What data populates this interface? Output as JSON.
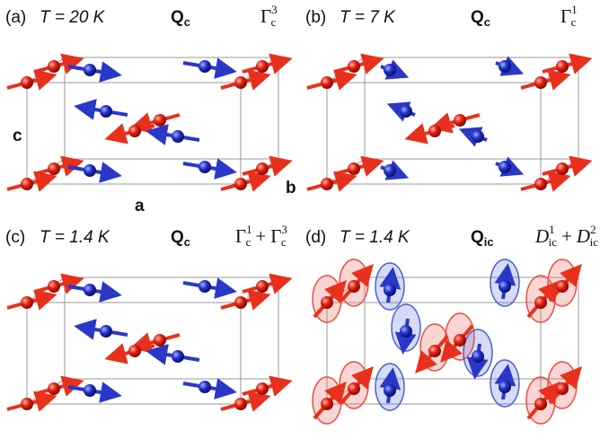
{
  "panels": [
    {
      "label": "(a)",
      "temperature": "T = 20 K",
      "wavevector": {
        "symbol": "Q",
        "subscript": "c"
      },
      "irreps": [
        {
          "symbol": "Γ",
          "subscript": "c",
          "superscript": "3"
        }
      ],
      "axes": {
        "c": "c",
        "a": "a",
        "b": "b"
      }
    },
    {
      "label": "(b)",
      "temperature": "T = 7 K",
      "wavevector": {
        "symbol": "Q",
        "subscript": "c"
      },
      "irreps": [
        {
          "symbol": "Γ",
          "subscript": "c",
          "superscript": "1"
        }
      ]
    },
    {
      "label": "(c)",
      "temperature": "T = 1.4 K",
      "wavevector": {
        "symbol": "Q",
        "subscript": "c"
      },
      "irreps": [
        {
          "symbol": "Γ",
          "subscript": "c",
          "superscript": "1"
        },
        {
          "symbol": "Γ",
          "subscript": "c",
          "superscript": "3"
        }
      ],
      "joiner": "+"
    },
    {
      "label": "(d)",
      "temperature": "T = 1.4 K",
      "wavevector": {
        "symbol": "Q",
        "subscript": "ic"
      },
      "irreps": [
        {
          "symbol": "D",
          "subscript": "ic",
          "superscript": "1"
        },
        {
          "symbol": "D",
          "subscript": "ic",
          "superscript": "2"
        }
      ],
      "joiner": "+"
    }
  ]
}
